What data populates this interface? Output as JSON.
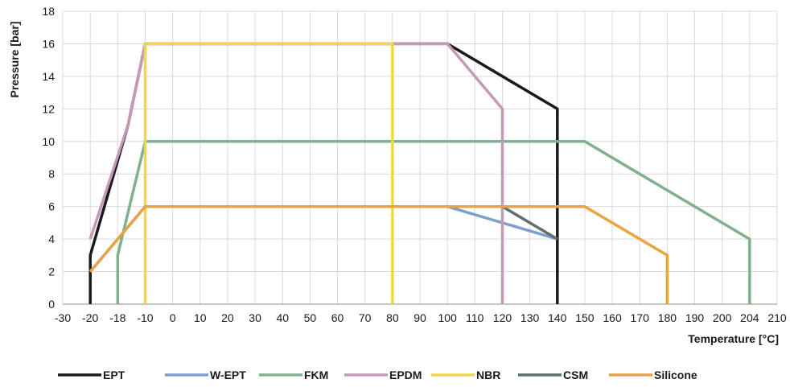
{
  "chart_data": {
    "type": "line",
    "xlabel": "Temperature [°C]",
    "ylabel": "Pressure [bar]",
    "ylim": [
      0,
      18
    ],
    "y_ticks": [
      "0",
      "2",
      "4",
      "6",
      "8",
      "10",
      "12",
      "14",
      "16",
      "18"
    ],
    "x_ticks": [
      "-30",
      "-20",
      "-18",
      "-10",
      "0",
      "10",
      "20",
      "30",
      "40",
      "50",
      "60",
      "70",
      "80",
      "90",
      "100",
      "110",
      "120",
      "130",
      "140",
      "150",
      "160",
      "170",
      "180",
      "190",
      "200",
      "204",
      "210"
    ],
    "grid": true,
    "legend_position": "bottom",
    "series": [
      {
        "name": "EPT",
        "color": "#1a1a1a",
        "points": [
          [
            -20,
            0
          ],
          [
            -20,
            3
          ],
          [
            -15,
            11
          ],
          [
            -10,
            16
          ],
          [
            100,
            16
          ],
          [
            140,
            12
          ],
          [
            140,
            0
          ]
        ]
      },
      {
        "name": "W-EPT",
        "color": "#7b9fcf",
        "points": [
          [
            -20,
            2
          ],
          [
            -10,
            6
          ],
          [
            100,
            6
          ],
          [
            140,
            4
          ]
        ]
      },
      {
        "name": "FKM",
        "color": "#7fb18e",
        "points": [
          [
            -18,
            0
          ],
          [
            -18,
            3
          ],
          [
            -10,
            10
          ],
          [
            150,
            10
          ],
          [
            204,
            4
          ],
          [
            204,
            0
          ]
        ]
      },
      {
        "name": "EPDM",
        "color": "#c49ab7",
        "points": [
          [
            -20,
            4
          ],
          [
            -15,
            11
          ],
          [
            -10,
            16
          ],
          [
            100,
            16
          ],
          [
            120,
            12
          ],
          [
            120,
            0
          ]
        ]
      },
      {
        "name": "NBR",
        "color": "#f0d64a",
        "points": [
          [
            -10,
            0
          ],
          [
            -10,
            16
          ],
          [
            80,
            16
          ],
          [
            80,
            0
          ]
        ]
      },
      {
        "name": "CSM",
        "color": "#5f6f6f",
        "points": [
          [
            -10,
            6
          ],
          [
            120,
            6
          ],
          [
            130,
            5
          ],
          [
            140,
            4
          ]
        ]
      },
      {
        "name": "Silicone",
        "color": "#e8a440",
        "points": [
          [
            -20,
            2
          ],
          [
            -10,
            6
          ],
          [
            150,
            6
          ],
          [
            160,
            5
          ],
          [
            180,
            3
          ],
          [
            180,
            0
          ]
        ]
      }
    ]
  }
}
